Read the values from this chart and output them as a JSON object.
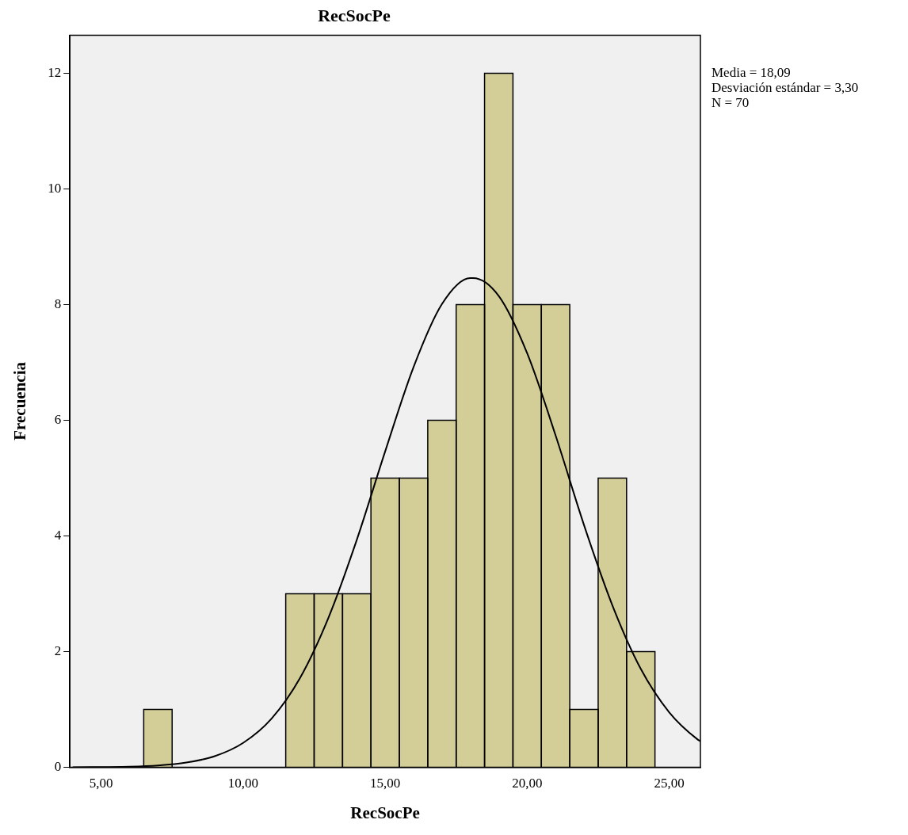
{
  "chart_data": {
    "type": "histogram",
    "title": "RecSocPe",
    "xlabel": "RecSocPe",
    "ylabel": "Frecuencia",
    "bins": [
      6.5,
      7.5,
      8.5,
      9.5,
      10.5,
      11.5,
      12.5,
      13.5,
      14.5,
      15.5,
      16.5,
      17.5,
      18.5,
      19.5,
      20.5,
      21.5,
      22.5,
      23.5,
      24.5
    ],
    "values": [
      1,
      0,
      0,
      0,
      0,
      3,
      3,
      3,
      5,
      5,
      6,
      8,
      12,
      8,
      8,
      1,
      5,
      2
    ],
    "color": "#d3ce97",
    "series": [
      {
        "type": "line",
        "color": "#000000",
        "x": [
          4,
          6,
          7,
          8,
          9,
          10,
          11,
          12,
          13,
          14,
          15,
          16,
          17,
          18,
          18.09,
          19,
          20,
          21,
          22,
          23,
          24,
          25,
          26,
          26.1
        ],
        "values": [
          0,
          0.01,
          0.03,
          0.08,
          0.19,
          0.42,
          0.84,
          1.54,
          2.58,
          3.93,
          5.46,
          6.92,
          8.01,
          8.46,
          8.46,
          8.15,
          7.16,
          5.74,
          4.19,
          2.8,
          1.7,
          0.95,
          0.48,
          0.45
        ]
      }
    ],
    "marker": "none",
    "xlim": [
      3.9,
      26.1
    ],
    "xticks": [
      {
        "value": 5,
        "label": "5,00"
      },
      {
        "value": 10,
        "label": "10,00"
      },
      {
        "value": 15,
        "label": "15,00"
      },
      {
        "value": 20,
        "label": "20,00"
      },
      {
        "value": 25,
        "label": "25,00"
      }
    ],
    "ylim": [
      0,
      12.66
    ],
    "yticks": [
      0,
      2,
      4,
      6,
      8,
      10,
      12
    ],
    "grid": false,
    "legend": false,
    "annotations": [
      "Media = 18,09",
      "Desviación estándar = 3,30",
      "N = 70"
    ]
  }
}
